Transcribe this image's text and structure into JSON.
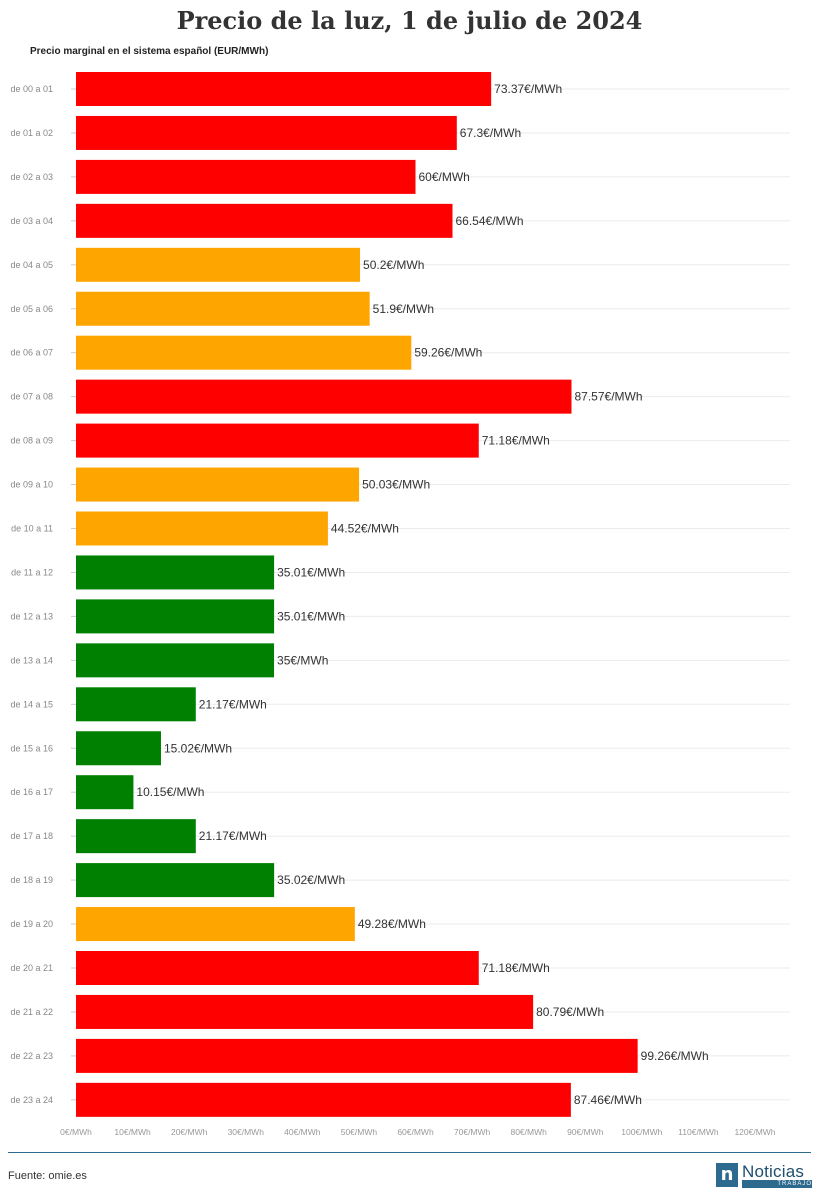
{
  "chart_data": {
    "type": "bar",
    "orientation": "horizontal",
    "title": "Precio de la luz, 1 de julio de 2024",
    "subtitle": "Precio marginal en el sistema español (EUR/MWh)",
    "unit_suffix": "€/MWh",
    "xlim": [
      0,
      120
    ],
    "xticks": [
      "0€/MWh",
      "10€/MWh",
      "20€/MWh",
      "30€/MWh",
      "40€/MWh",
      "50€/MWh",
      "60€/MWh",
      "70€/MWh",
      "80€/MWh",
      "90€/MWh",
      "100€/MWh",
      "110€/MWh",
      "120€/MWh"
    ],
    "xtick_values": [
      0,
      10,
      20,
      30,
      40,
      50,
      60,
      70,
      80,
      90,
      100,
      110,
      120
    ],
    "categories": [
      "de 00 a 01",
      "de 01 a 02",
      "de 02 a 03",
      "de 03 a 04",
      "de 04 a 05",
      "de 05 a 06",
      "de 06 a 07",
      "de 07 a 08",
      "de 08 a 09",
      "de 09 a 10",
      "de 10 a 11",
      "de 11 a 12",
      "de 12 a 13",
      "de 13 a 14",
      "de 14 a 15",
      "de 15 a 16",
      "de 16 a 17",
      "de 17 a 18",
      "de 18 a 19",
      "de 19 a 20",
      "de 20 a 21",
      "de 21 a 22",
      "de 22 a 23",
      "de 23 a 24"
    ],
    "values": [
      73.37,
      67.3,
      60,
      66.54,
      50.2,
      51.9,
      59.26,
      87.57,
      71.18,
      50.03,
      44.52,
      35.01,
      35.01,
      35,
      21.17,
      15.02,
      10.15,
      21.17,
      35.02,
      49.28,
      71.18,
      80.79,
      99.26,
      87.46
    ],
    "value_labels": [
      "73.37€/MWh",
      "67.3€/MWh",
      "60€/MWh",
      "66.54€/MWh",
      "50.2€/MWh",
      "51.9€/MWh",
      "59.26€/MWh",
      "87.57€/MWh",
      "71.18€/MWh",
      "50.03€/MWh",
      "44.52€/MWh",
      "35.01€/MWh",
      "35.01€/MWh",
      "35€/MWh",
      "21.17€/MWh",
      "15.02€/MWh",
      "10.15€/MWh",
      "21.17€/MWh",
      "35.02€/MWh",
      "49.28€/MWh",
      "71.18€/MWh",
      "80.79€/MWh",
      "99.26€/MWh",
      "87.46€/MWh"
    ],
    "level": [
      "high",
      "high",
      "high",
      "high",
      "medium",
      "medium",
      "medium",
      "high",
      "high",
      "medium",
      "medium",
      "low",
      "low",
      "low",
      "low",
      "low",
      "low",
      "low",
      "low",
      "medium",
      "high",
      "high",
      "high",
      "high"
    ],
    "colors": {
      "high": "#ff0000",
      "medium": "#ffa500",
      "low": "#008000"
    }
  },
  "footer": {
    "source": "Fuente: omie.es",
    "logo_mark": "n",
    "logo_name": "Noticias",
    "logo_sub": "TRABAJO"
  }
}
